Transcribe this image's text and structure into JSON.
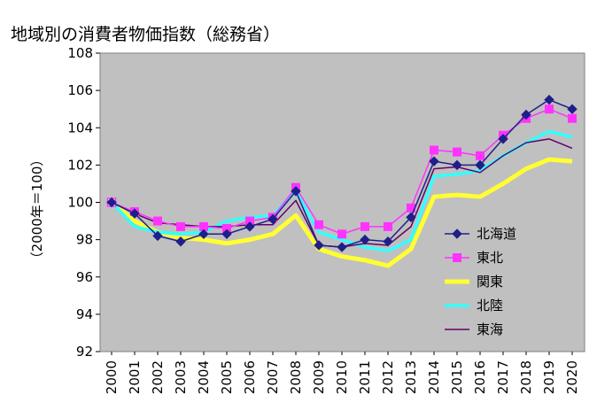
{
  "chart_data": {
    "type": "line",
    "title": "地域別の消費者物価指数（総務省）",
    "ylabel": "（2000年＝100）",
    "xlabel": "",
    "ylim": [
      92,
      108
    ],
    "yticks": [
      "92",
      "94",
      "96",
      "98",
      "100",
      "102",
      "104",
      "106",
      "108"
    ],
    "categories": [
      "2000",
      "2001",
      "2002",
      "2003",
      "2004",
      "2005",
      "2006",
      "2007",
      "2008",
      "2009",
      "2010",
      "2011",
      "2012",
      "2013",
      "2014",
      "2015",
      "2016",
      "2017",
      "2018",
      "2019",
      "2020"
    ],
    "grid": false,
    "legend_position": "right",
    "series": [
      {
        "name": "北海道",
        "color": "#1f1f8a",
        "marker": "diamond",
        "width": 1.5,
        "values": [
          100.0,
          99.4,
          98.2,
          97.9,
          98.3,
          98.3,
          98.7,
          99.1,
          100.6,
          97.7,
          97.6,
          98.0,
          97.9,
          99.2,
          102.2,
          102.0,
          102.0,
          103.4,
          104.7,
          105.5,
          105.0
        ]
      },
      {
        "name": "東北",
        "color": "#ff33ff",
        "marker": "square",
        "width": 1.5,
        "values": [
          100.0,
          99.5,
          99.0,
          98.7,
          98.7,
          98.6,
          99.0,
          99.2,
          100.8,
          98.8,
          98.3,
          98.7,
          98.7,
          99.7,
          102.8,
          102.7,
          102.5,
          103.6,
          104.5,
          105.0,
          104.5
        ]
      },
      {
        "name": "関東",
        "color": "#ffff33",
        "marker": "none",
        "width": 5,
        "values": [
          100.0,
          99.0,
          98.4,
          98.1,
          98.0,
          97.8,
          98.0,
          98.3,
          99.3,
          97.5,
          97.1,
          96.9,
          96.6,
          97.5,
          100.3,
          100.4,
          100.3,
          101.0,
          101.8,
          102.3,
          102.2
        ]
      },
      {
        "name": "北陸",
        "color": "#33ffff",
        "marker": "none",
        "width": 3.5,
        "values": [
          100.0,
          98.7,
          98.4,
          98.3,
          98.4,
          99.0,
          99.2,
          99.3,
          100.6,
          98.4,
          98.0,
          97.6,
          97.4,
          98.0,
          101.4,
          101.5,
          101.7,
          102.5,
          103.2,
          103.8,
          103.5
        ]
      },
      {
        "name": "東海",
        "color": "#660066",
        "marker": "none",
        "width": 1.5,
        "values": [
          100.0,
          99.4,
          98.9,
          98.8,
          98.7,
          98.7,
          98.8,
          98.8,
          100.1,
          97.7,
          97.6,
          97.8,
          97.7,
          98.7,
          101.8,
          101.9,
          101.6,
          102.5,
          103.2,
          103.4,
          102.9
        ]
      }
    ]
  }
}
